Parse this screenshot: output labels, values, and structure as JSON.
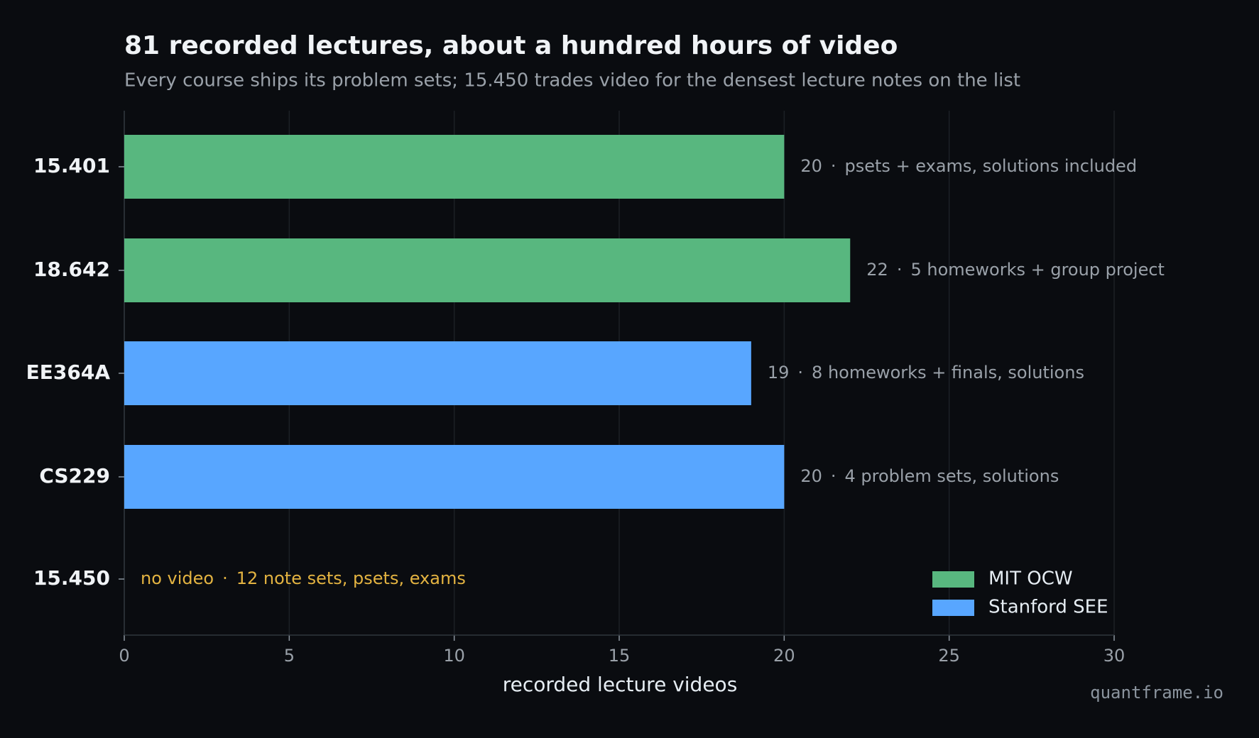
{
  "chart_data": {
    "type": "barh",
    "title": "81 recorded lectures, about a hundred hours of video",
    "subtitle": "Every course ships its problem sets; 15.450 trades video for the densest lecture notes on the list",
    "categories": [
      "15.401",
      "18.642",
      "EE364A",
      "CS229",
      "15.450"
    ],
    "series": [
      {
        "name": "MIT OCW",
        "color": "#58b77f",
        "values": [
          20,
          22,
          null,
          null,
          null
        ]
      },
      {
        "name": "Stanford SEE",
        "color": "#58a6ff",
        "values": [
          null,
          null,
          19,
          20,
          null
        ]
      }
    ],
    "notes": [
      "psets + exams, solutions included",
      "5 homeworks + group project",
      "8 homeworks + finals, solutions",
      "4 problem sets, solutions",
      "12 note sets, psets, exams"
    ],
    "label_separator": "·",
    "no_video_label": "no video",
    "no_video_color": "#e3b341",
    "xlabel": "recorded lecture videos",
    "xlim": [
      0,
      30
    ],
    "xticks": [
      0,
      5,
      10,
      15,
      20,
      25,
      30
    ],
    "grid": true,
    "legend": "lower right",
    "watermark": "quantframe.io"
  }
}
